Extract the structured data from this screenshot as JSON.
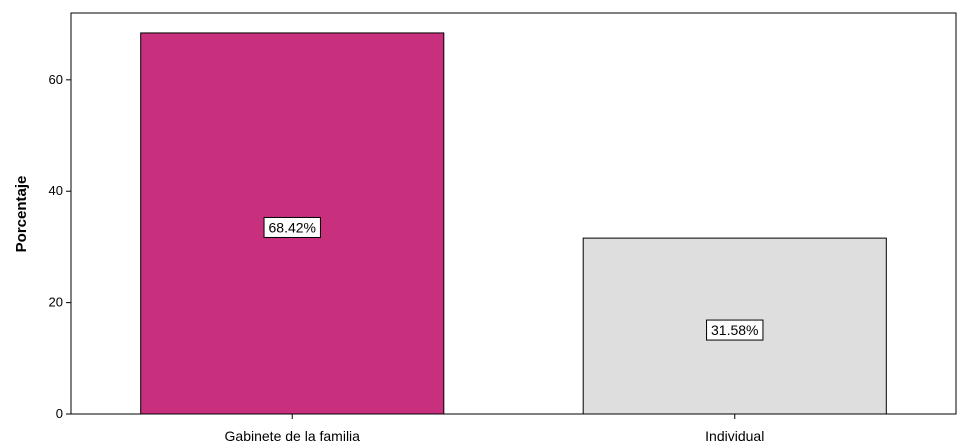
{
  "chart_data": {
    "type": "bar",
    "categories": [
      "Gabinete de la familia",
      "Individual"
    ],
    "values": [
      68.42,
      31.58
    ],
    "data_labels": [
      "68.42%",
      "31.58%"
    ],
    "colors": [
      "#c8307e",
      "#dedede"
    ],
    "ylabel": "Porcentaje",
    "xlabel": "",
    "ylim": [
      0,
      72
    ],
    "yticks": [
      0,
      20,
      40,
      60
    ],
    "grid": false,
    "legend": "none"
  }
}
